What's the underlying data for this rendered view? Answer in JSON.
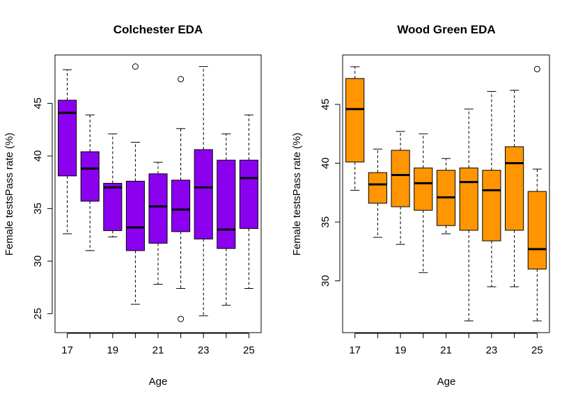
{
  "chart_data": [
    {
      "type": "boxplot",
      "title": "Colchester EDA",
      "xlabel": "Age",
      "ylabel": "Female testsPass rate (%)",
      "categories": [
        "17",
        "18",
        "19",
        "20",
        "21",
        "22",
        "23",
        "24",
        "25"
      ],
      "x_tick_labels": [
        "17",
        "19",
        "21",
        "23",
        "25"
      ],
      "y_ticks": [
        25,
        30,
        35,
        40,
        45
      ],
      "y_tick_labels": [
        "25",
        "30",
        "35",
        "40",
        "45"
      ],
      "ylim": [
        23.2,
        49.6
      ],
      "fill_color": "#8b00ee",
      "boxes": [
        {
          "whisker_low": 32.6,
          "q1": 38.1,
          "median": 44.1,
          "q3": 45.3,
          "whisker_high": 48.2,
          "outliers": []
        },
        {
          "whisker_low": 31.0,
          "q1": 35.7,
          "median": 38.8,
          "q3": 40.4,
          "whisker_high": 43.9,
          "outliers": []
        },
        {
          "whisker_low": 32.3,
          "q1": 32.9,
          "median": 37.0,
          "q3": 37.4,
          "whisker_high": 42.1,
          "outliers": []
        },
        {
          "whisker_low": 25.9,
          "q1": 31.0,
          "median": 33.2,
          "q3": 37.6,
          "whisker_high": 41.3,
          "outliers": [
            48.5
          ]
        },
        {
          "whisker_low": 27.8,
          "q1": 31.7,
          "median": 35.2,
          "q3": 38.3,
          "whisker_high": 39.4,
          "outliers": []
        },
        {
          "whisker_low": 27.4,
          "q1": 32.8,
          "median": 34.9,
          "q3": 37.7,
          "whisker_high": 42.6,
          "outliers": [
            47.3,
            24.5
          ]
        },
        {
          "whisker_low": 24.8,
          "q1": 32.1,
          "median": 37.0,
          "q3": 40.6,
          "whisker_high": 48.5,
          "outliers": []
        },
        {
          "whisker_low": 25.8,
          "q1": 31.2,
          "median": 33.0,
          "q3": 39.6,
          "whisker_high": 42.1,
          "outliers": []
        },
        {
          "whisker_low": 27.4,
          "q1": 33.1,
          "median": 37.9,
          "q3": 39.6,
          "whisker_high": 43.9,
          "outliers": []
        }
      ]
    },
    {
      "type": "boxplot",
      "title": "Wood Green EDA",
      "xlabel": "Age",
      "ylabel": "Female testsPass rate (%)",
      "categories": [
        "17",
        "18",
        "19",
        "20",
        "21",
        "22",
        "23",
        "24",
        "25"
      ],
      "x_tick_labels": [
        "17",
        "19",
        "21",
        "23",
        "25"
      ],
      "y_ticks": [
        30,
        35,
        40,
        45
      ],
      "y_tick_labels": [
        "30",
        "35",
        "40",
        "45"
      ],
      "ylim": [
        25.6,
        49.2
      ],
      "fill_color": "#ff9500",
      "boxes": [
        {
          "whisker_low": 37.7,
          "q1": 40.1,
          "median": 44.6,
          "q3": 47.2,
          "whisker_high": 48.2,
          "outliers": []
        },
        {
          "whisker_low": 33.7,
          "q1": 36.6,
          "median": 38.2,
          "q3": 39.2,
          "whisker_high": 41.2,
          "outliers": []
        },
        {
          "whisker_low": 33.1,
          "q1": 36.3,
          "median": 39.0,
          "q3": 41.1,
          "whisker_high": 42.7,
          "outliers": []
        },
        {
          "whisker_low": 30.7,
          "q1": 36.0,
          "median": 38.3,
          "q3": 39.6,
          "whisker_high": 42.5,
          "outliers": []
        },
        {
          "whisker_low": 34.0,
          "q1": 34.7,
          "median": 37.1,
          "q3": 39.4,
          "whisker_high": 40.4,
          "outliers": []
        },
        {
          "whisker_low": 26.6,
          "q1": 34.3,
          "median": 38.4,
          "q3": 39.6,
          "whisker_high": 44.6,
          "outliers": []
        },
        {
          "whisker_low": 29.5,
          "q1": 33.4,
          "median": 37.7,
          "q3": 39.4,
          "whisker_high": 46.1,
          "outliers": []
        },
        {
          "whisker_low": 29.5,
          "q1": 34.3,
          "median": 40.0,
          "q3": 41.4,
          "whisker_high": 46.2,
          "outliers": []
        },
        {
          "whisker_low": 26.6,
          "q1": 31.0,
          "median": 32.7,
          "q3": 37.6,
          "whisker_high": 39.5,
          "outliers": [
            48.0
          ]
        }
      ]
    }
  ]
}
